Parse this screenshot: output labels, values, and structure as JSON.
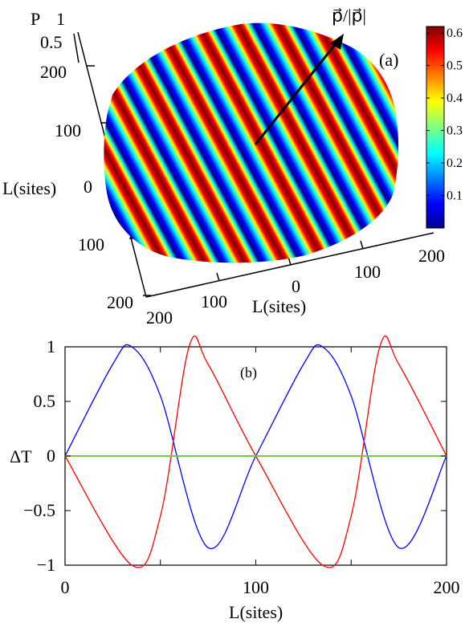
{
  "chart_data": [
    {
      "type": "heatmap",
      "panel_label": "(a)",
      "zlabel": "P",
      "z_ticks": [
        "1",
        "0.5"
      ],
      "ylabel": "L(sites)",
      "y_ticks": [
        "200",
        "100",
        "0",
        "100",
        "200"
      ],
      "xlabel": "L(sites)",
      "x_ticks": [
        "200",
        "100",
        "0",
        "100",
        "200"
      ],
      "annotation": "p⃗/|p⃗|",
      "colorbar": {
        "ticks": [
          "0.6",
          "0.5",
          "0.4",
          "0.3",
          "0.2",
          "0.1"
        ],
        "range": [
          0.0,
          0.62
        ],
        "colormap": "jet"
      },
      "stripes": 10
    },
    {
      "type": "line",
      "panel_label": "(b)",
      "xlabel": "L(sites)",
      "ylabel": "ΔT",
      "xlim": [
        0,
        200
      ],
      "ylim": [
        -1,
        1
      ],
      "x_ticks": [
        "0",
        "100",
        "200"
      ],
      "y_ticks": [
        "1",
        "0.5",
        "0",
        "−0.5",
        "−1"
      ],
      "y_tick_values": [
        1,
        0.5,
        0,
        -0.5,
        -1
      ],
      "grid": false,
      "series": [
        {
          "color": "#0000ff",
          "x": [
            0,
            25,
            35,
            50,
            75,
            100,
            125,
            135,
            150,
            175,
            200
          ],
          "values": [
            0,
            0.84,
            1,
            0.55,
            -0.84,
            0,
            0.84,
            1,
            0.55,
            -0.84,
            0
          ]
        },
        {
          "color": "#ff0000",
          "x": [
            0,
            35,
            50,
            65,
            75,
            100,
            135,
            150,
            165,
            175,
            200
          ],
          "values": [
            0,
            -1,
            -0.55,
            1,
            0.84,
            0,
            -1,
            -0.55,
            1,
            0.84,
            0
          ]
        },
        {
          "color": "#77cc44",
          "x": [
            0,
            200
          ],
          "values": [
            0,
            0
          ]
        }
      ]
    }
  ]
}
